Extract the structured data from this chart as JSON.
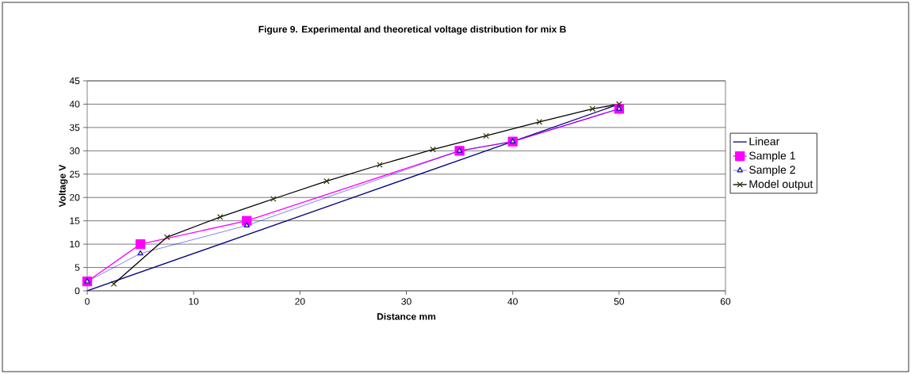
{
  "chart_data": {
    "type": "line",
    "title": "Figure 9.  Experimental and theoretical voltage distribution for mix B",
    "xlabel": "Distance mm",
    "ylabel": "Voltage V",
    "xlim": [
      0,
      60
    ],
    "xticks": [
      0,
      10,
      20,
      30,
      40,
      50,
      60
    ],
    "ylim": [
      0,
      45
    ],
    "yticks": [
      0,
      5,
      10,
      15,
      20,
      25,
      30,
      35,
      40,
      45
    ],
    "grid": "y",
    "legend": "right",
    "line_style": "solid",
    "series": [
      {
        "name": "Linear",
        "color": "#000080",
        "x": [
          0,
          50
        ],
        "values": [
          0,
          40
        ]
      },
      {
        "name": "Sample 1",
        "color": "#ff00ff",
        "marker": "square",
        "x": [
          0,
          5,
          15,
          35,
          40,
          50
        ],
        "values": [
          2,
          10,
          15,
          30,
          32,
          39
        ]
      },
      {
        "name": "Sample 2",
        "color": "#0000ff",
        "marker": "triangle",
        "x": [
          0,
          5,
          15,
          35,
          40,
          50
        ],
        "values": [
          2,
          8,
          14,
          30,
          32,
          39
        ]
      },
      {
        "name": "Model output",
        "color": "#000000",
        "marker": "cross",
        "x": [
          2.5,
          7.5,
          12.5,
          17.5,
          22.5,
          27.5,
          32.5,
          37.5,
          42.5,
          47.5,
          50
        ],
        "values": [
          1.5,
          11.5,
          15.8,
          19.7,
          23.5,
          27,
          30.3,
          33.2,
          36.2,
          39,
          40
        ]
      }
    ]
  }
}
